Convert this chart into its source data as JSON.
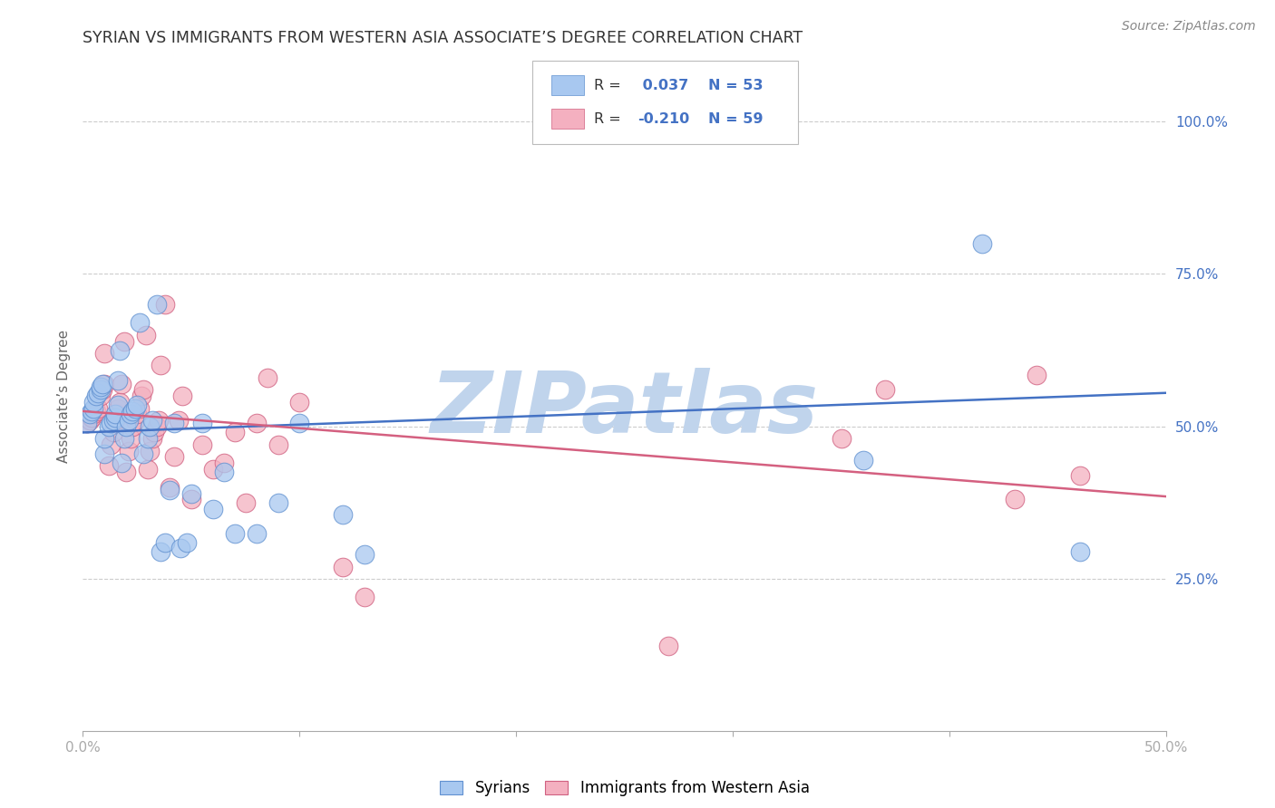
{
  "title": "SYRIAN VS IMMIGRANTS FROM WESTERN ASIA ASSOCIATE’S DEGREE CORRELATION CHART",
  "source": "Source: ZipAtlas.com",
  "ylabel": "Associate’s Degree",
  "xlim": [
    0.0,
    0.5
  ],
  "ylim": [
    0.0,
    1.1
  ],
  "xtick_labels": [
    "0.0%",
    "",
    "",
    "",
    "",
    "50.0%"
  ],
  "xtick_vals": [
    0.0,
    0.1,
    0.2,
    0.3,
    0.4,
    0.5
  ],
  "ytick_labels": [
    "25.0%",
    "50.0%",
    "75.0%",
    "100.0%"
  ],
  "ytick_vals": [
    0.25,
    0.5,
    0.75,
    1.0
  ],
  "blue_R": 0.037,
  "blue_N": 53,
  "pink_R": -0.21,
  "pink_N": 59,
  "blue_color": "#A8C8F0",
  "pink_color": "#F4B0C0",
  "blue_edge_color": "#6090D0",
  "pink_edge_color": "#D06080",
  "blue_line_color": "#4472C4",
  "pink_line_color": "#D46080",
  "label_color": "#4472C4",
  "title_color": "#333333",
  "watermark_color": "#C0D4EC",
  "watermark_text": "ZIPatlas",
  "background_color": "#FFFFFF",
  "grid_color": "#CCCCCC",
  "blue_x": [
    0.002,
    0.003,
    0.004,
    0.005,
    0.005,
    0.006,
    0.007,
    0.008,
    0.008,
    0.009,
    0.01,
    0.01,
    0.012,
    0.013,
    0.014,
    0.015,
    0.015,
    0.016,
    0.016,
    0.017,
    0.018,
    0.019,
    0.02,
    0.021,
    0.022,
    0.023,
    0.024,
    0.025,
    0.026,
    0.028,
    0.03,
    0.031,
    0.032,
    0.034,
    0.036,
    0.038,
    0.04,
    0.042,
    0.045,
    0.048,
    0.05,
    0.055,
    0.06,
    0.065,
    0.07,
    0.08,
    0.09,
    0.1,
    0.12,
    0.13,
    0.36,
    0.415,
    0.46
  ],
  "blue_y": [
    0.505,
    0.52,
    0.525,
    0.53,
    0.54,
    0.55,
    0.555,
    0.56,
    0.565,
    0.57,
    0.455,
    0.48,
    0.5,
    0.505,
    0.51,
    0.515,
    0.52,
    0.535,
    0.575,
    0.625,
    0.44,
    0.48,
    0.5,
    0.51,
    0.52,
    0.525,
    0.53,
    0.535,
    0.67,
    0.455,
    0.48,
    0.5,
    0.51,
    0.7,
    0.295,
    0.31,
    0.395,
    0.505,
    0.3,
    0.31,
    0.39,
    0.505,
    0.365,
    0.425,
    0.325,
    0.325,
    0.375,
    0.505,
    0.355,
    0.29,
    0.445,
    0.8,
    0.295
  ],
  "pink_x": [
    0.002,
    0.003,
    0.004,
    0.005,
    0.006,
    0.007,
    0.008,
    0.009,
    0.01,
    0.01,
    0.012,
    0.013,
    0.014,
    0.015,
    0.016,
    0.016,
    0.017,
    0.018,
    0.019,
    0.02,
    0.021,
    0.022,
    0.023,
    0.024,
    0.025,
    0.026,
    0.027,
    0.028,
    0.029,
    0.03,
    0.031,
    0.032,
    0.033,
    0.034,
    0.035,
    0.036,
    0.038,
    0.04,
    0.042,
    0.044,
    0.046,
    0.05,
    0.055,
    0.06,
    0.065,
    0.07,
    0.075,
    0.08,
    0.085,
    0.09,
    0.1,
    0.12,
    0.13,
    0.27,
    0.35,
    0.37,
    0.43,
    0.44,
    0.46
  ],
  "pink_y": [
    0.505,
    0.51,
    0.515,
    0.52,
    0.525,
    0.53,
    0.55,
    0.56,
    0.57,
    0.62,
    0.435,
    0.47,
    0.49,
    0.51,
    0.52,
    0.53,
    0.54,
    0.57,
    0.64,
    0.425,
    0.46,
    0.48,
    0.5,
    0.51,
    0.52,
    0.53,
    0.55,
    0.56,
    0.65,
    0.43,
    0.46,
    0.48,
    0.49,
    0.5,
    0.51,
    0.6,
    0.7,
    0.4,
    0.45,
    0.51,
    0.55,
    0.38,
    0.47,
    0.43,
    0.44,
    0.49,
    0.375,
    0.505,
    0.58,
    0.47,
    0.54,
    0.27,
    0.22,
    0.14,
    0.48,
    0.56,
    0.38,
    0.585,
    0.42
  ]
}
